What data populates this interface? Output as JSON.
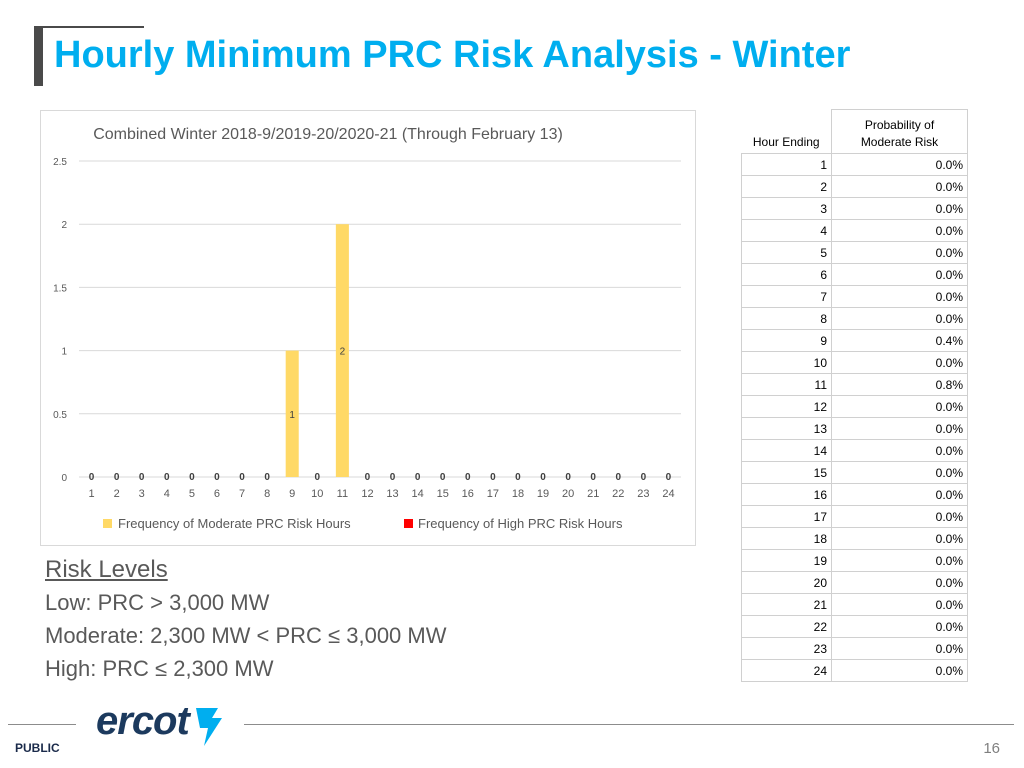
{
  "page": {
    "title": "Hourly Minimum PRC Risk Analysis - Winter",
    "footer_label": "PUBLIC",
    "page_number": "16",
    "logo_text": "ercot"
  },
  "chart_data": {
    "type": "bar",
    "title": "Combined Winter 2018-9/2019-20/2020-21 (Through February 13)",
    "categories": [
      "1",
      "2",
      "3",
      "4",
      "5",
      "6",
      "7",
      "8",
      "9",
      "10",
      "11",
      "12",
      "13",
      "14",
      "15",
      "16",
      "17",
      "18",
      "19",
      "20",
      "21",
      "22",
      "23",
      "24"
    ],
    "series": [
      {
        "name": "Frequency of Moderate PRC Risk Hours",
        "color": "#ffd966",
        "values": [
          0,
          0,
          0,
          0,
          0,
          0,
          0,
          0,
          1,
          0,
          2,
          0,
          0,
          0,
          0,
          0,
          0,
          0,
          0,
          0,
          0,
          0,
          0,
          0
        ]
      },
      {
        "name": "Frequency of High PRC Risk Hours",
        "color": "#ff0000",
        "values": [
          0,
          0,
          0,
          0,
          0,
          0,
          0,
          0,
          0,
          0,
          0,
          0,
          0,
          0,
          0,
          0,
          0,
          0,
          0,
          0,
          0,
          0,
          0,
          0
        ]
      }
    ],
    "y_ticks": [
      "0",
      "0.5",
      "1",
      "1.5",
      "2",
      "2.5"
    ],
    "ylim": [
      0,
      2.5
    ],
    "legend": "bottom",
    "grid": true
  },
  "risk_levels": {
    "heading": "Risk Levels",
    "low": "Low: PRC > 3,000 MW",
    "moderate": "Moderate: 2,300 MW < PRC ≤ 3,000 MW",
    "high": "High: PRC ≤ 2,300 MW"
  },
  "table": {
    "header_hour": "Hour Ending",
    "header_prob_line1": "Probability of",
    "header_prob_line2": "Moderate Risk",
    "rows": [
      {
        "hour": "1",
        "prob": "0.0%"
      },
      {
        "hour": "2",
        "prob": "0.0%"
      },
      {
        "hour": "3",
        "prob": "0.0%"
      },
      {
        "hour": "4",
        "prob": "0.0%"
      },
      {
        "hour": "5",
        "prob": "0.0%"
      },
      {
        "hour": "6",
        "prob": "0.0%"
      },
      {
        "hour": "7",
        "prob": "0.0%"
      },
      {
        "hour": "8",
        "prob": "0.0%"
      },
      {
        "hour": "9",
        "prob": "0.4%"
      },
      {
        "hour": "10",
        "prob": "0.0%"
      },
      {
        "hour": "11",
        "prob": "0.8%"
      },
      {
        "hour": "12",
        "prob": "0.0%"
      },
      {
        "hour": "13",
        "prob": "0.0%"
      },
      {
        "hour": "14",
        "prob": "0.0%"
      },
      {
        "hour": "15",
        "prob": "0.0%"
      },
      {
        "hour": "16",
        "prob": "0.0%"
      },
      {
        "hour": "17",
        "prob": "0.0%"
      },
      {
        "hour": "18",
        "prob": "0.0%"
      },
      {
        "hour": "19",
        "prob": "0.0%"
      },
      {
        "hour": "20",
        "prob": "0.0%"
      },
      {
        "hour": "21",
        "prob": "0.0%"
      },
      {
        "hour": "22",
        "prob": "0.0%"
      },
      {
        "hour": "23",
        "prob": "0.0%"
      },
      {
        "hour": "24",
        "prob": "0.0%"
      }
    ]
  }
}
